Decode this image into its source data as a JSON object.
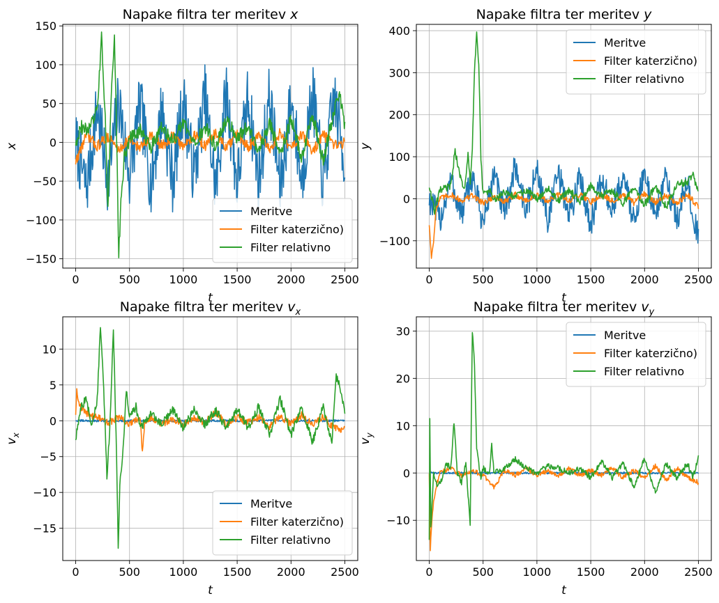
{
  "chart_data": [
    {
      "type": "line",
      "title": "Napake filtra ter meritev",
      "title_var": "x",
      "title_sub": "",
      "xlabel": "t",
      "ylabel": "x",
      "ylabel_sub": "",
      "xlim": [
        -120,
        2620
      ],
      "ylim": [
        -162,
        152
      ],
      "xticks": [
        0,
        500,
        1000,
        1500,
        2000,
        2500
      ],
      "yticks": [
        -150,
        -100,
        -50,
        0,
        50,
        100,
        150
      ],
      "ytick_labels": [
        "−150",
        "−100",
        "−50",
        "0",
        "50",
        "100",
        "150"
      ],
      "grid": true,
      "legend_position": "lower right",
      "series": [
        {
          "name": "Meritve",
          "color": "#1f77b4",
          "x": [
            0,
            100,
            200,
            300,
            400,
            500,
            600,
            700,
            800,
            900,
            1000,
            1100,
            1200,
            1300,
            1400,
            1500,
            1600,
            1700,
            1800,
            1900,
            2000,
            2100,
            2200,
            2300,
            2400,
            2500
          ],
          "y": [
            0,
            -60,
            45,
            -50,
            55,
            -45,
            50,
            -55,
            45,
            -50,
            55,
            -45,
            60,
            -60,
            65,
            -55,
            60,
            -50,
            60,
            -60,
            55,
            -50,
            65,
            -55,
            60,
            -28
          ],
          "noise": 42
        },
        {
          "name": "Filter katerzično)",
          "color": "#ff7f0e",
          "x": [
            0,
            100,
            200,
            300,
            400,
            500,
            600,
            700,
            800,
            900,
            1000,
            1100,
            1200,
            1300,
            1400,
            1500,
            1600,
            1700,
            1800,
            1900,
            2000,
            2100,
            2200,
            2300,
            2400,
            2500
          ],
          "y": [
            -25,
            10,
            -5,
            8,
            -10,
            5,
            -8,
            10,
            -5,
            8,
            -6,
            10,
            -5,
            12,
            -8,
            10,
            -6,
            8,
            -10,
            12,
            -8,
            10,
            -12,
            10,
            -5,
            0
          ],
          "noise": 7
        },
        {
          "name": "Filter relativno",
          "color": "#2ca02c",
          "x": [
            0,
            50,
            100,
            150,
            200,
            240,
            280,
            300,
            330,
            360,
            385,
            400,
            420,
            450,
            500,
            600,
            700,
            800,
            900,
            1000,
            1100,
            1200,
            1300,
            1400,
            1500,
            1600,
            1700,
            1800,
            1900,
            2000,
            2100,
            2200,
            2300,
            2400,
            2450,
            2500
          ],
          "y": [
            0,
            20,
            15,
            25,
            40,
            136,
            10,
            -88,
            60,
            136,
            -20,
            -148,
            -80,
            -20,
            5,
            15,
            -5,
            20,
            0,
            25,
            -5,
            20,
            -5,
            30,
            5,
            20,
            -10,
            25,
            -15,
            30,
            -20,
            35,
            -25,
            40,
            65,
            20
          ],
          "noise": 9
        }
      ]
    },
    {
      "type": "line",
      "title": "Napake filtra ter meritev",
      "title_var": "y",
      "title_sub": "",
      "xlabel": "t",
      "ylabel": "y",
      "ylabel_sub": "",
      "xlim": [
        -120,
        2620
      ],
      "ylim": [
        -165,
        415
      ],
      "xticks": [
        0,
        500,
        1000,
        1500,
        2000,
        2500
      ],
      "yticks": [
        -100,
        0,
        100,
        200,
        300,
        400
      ],
      "ytick_labels": [
        "−100",
        "0",
        "100",
        "200",
        "300",
        "400"
      ],
      "grid": true,
      "legend_position": "upper right",
      "series": [
        {
          "name": "Meritve",
          "color": "#1f77b4",
          "x": [
            0,
            100,
            200,
            300,
            400,
            500,
            600,
            700,
            800,
            900,
            1000,
            1100,
            1200,
            1300,
            1400,
            1500,
            1600,
            1700,
            1800,
            1900,
            2000,
            2100,
            2200,
            2300,
            2400,
            2500
          ],
          "y": [
            0,
            -50,
            45,
            -40,
            55,
            -60,
            60,
            -40,
            80,
            -30,
            70,
            -50,
            60,
            -40,
            50,
            -60,
            45,
            -30,
            55,
            -50,
            60,
            -40,
            50,
            -50,
            40,
            -100
          ],
          "noise": 35
        },
        {
          "name": "Filter katerzično)",
          "color": "#ff7f0e",
          "x": [
            0,
            20,
            40,
            60,
            100,
            200,
            300,
            400,
            500,
            600,
            700,
            800,
            900,
            1000,
            1100,
            1200,
            1300,
            1400,
            1500,
            1600,
            1700,
            1800,
            1900,
            2000,
            2100,
            2200,
            2300,
            2400,
            2500
          ],
          "y": [
            -60,
            -140,
            -100,
            -30,
            0,
            10,
            -5,
            8,
            -10,
            5,
            -8,
            10,
            -5,
            8,
            -6,
            10,
            -5,
            12,
            -8,
            10,
            -6,
            8,
            -10,
            12,
            -8,
            10,
            -12,
            10,
            -20
          ],
          "noise": 7
        },
        {
          "name": "Filter relativno",
          "color": "#2ca02c",
          "x": [
            0,
            50,
            100,
            200,
            240,
            280,
            330,
            360,
            380,
            400,
            420,
            440,
            460,
            480,
            500,
            560,
            600,
            700,
            800,
            900,
            1000,
            1100,
            1200,
            1300,
            1400,
            1500,
            1600,
            1700,
            1800,
            1900,
            2000,
            2100,
            2200,
            2300,
            2400,
            2450,
            2500
          ],
          "y": [
            30,
            -30,
            20,
            30,
            115,
            60,
            20,
            105,
            40,
            120,
            300,
            390,
            320,
            100,
            10,
            20,
            -5,
            15,
            5,
            20,
            0,
            25,
            -5,
            20,
            -5,
            30,
            5,
            20,
            -10,
            25,
            -15,
            30,
            -20,
            35,
            40,
            55,
            20
          ],
          "noise": 9
        }
      ]
    },
    {
      "type": "line",
      "title": "Napake filtra ter meritev",
      "title_var": "v",
      "title_sub": "x",
      "xlabel": "t",
      "ylabel": "v",
      "ylabel_sub": "x",
      "xlim": [
        -120,
        2620
      ],
      "ylim": [
        -19.5,
        14.5
      ],
      "xticks": [
        0,
        500,
        1000,
        1500,
        2000,
        2500
      ],
      "yticks": [
        -15,
        -10,
        -5,
        0,
        5,
        10
      ],
      "ytick_labels": [
        "−15",
        "−10",
        "−5",
        "0",
        "5",
        "10"
      ],
      "grid": true,
      "legend_position": "lower right",
      "series": [
        {
          "name": "Meritve",
          "color": "#1f77b4",
          "x": [
            0,
            500,
            1000,
            1500,
            2000,
            2500
          ],
          "y": [
            0,
            0,
            0,
            0,
            0,
            0
          ],
          "noise": 0.15
        },
        {
          "name": "Filter katerzično)",
          "color": "#ff7f0e",
          "x": [
            0,
            10,
            40,
            100,
            200,
            300,
            400,
            500,
            600,
            620,
            640,
            700,
            800,
            900,
            1000,
            1100,
            1200,
            1300,
            1400,
            1500,
            1600,
            1700,
            1800,
            1900,
            2000,
            2100,
            2200,
            2300,
            2400,
            2500
          ],
          "y": [
            1,
            4.3,
            2,
            1,
            0.5,
            -0.3,
            0.5,
            -0.5,
            0.3,
            -4.5,
            0,
            0.5,
            -0.5,
            0.3,
            -0.4,
            0.5,
            -0.3,
            1.2,
            -0.5,
            0.5,
            -0.3,
            0.5,
            -0.8,
            0.6,
            -0.5,
            0.8,
            -0.6,
            0.5,
            -1,
            -1.2
          ],
          "noise": 0.5
        },
        {
          "name": "Filter relativno",
          "color": "#2ca02c",
          "x": [
            0,
            50,
            100,
            150,
            200,
            230,
            260,
            290,
            320,
            350,
            380,
            395,
            410,
            440,
            470,
            500,
            560,
            600,
            700,
            800,
            900,
            1000,
            1100,
            1200,
            1300,
            1400,
            1500,
            1600,
            1700,
            1800,
            1900,
            2000,
            2100,
            2200,
            2300,
            2380,
            2420,
            2450,
            2500
          ],
          "y": [
            -2.5,
            2,
            3,
            -1,
            3,
            13,
            5,
            -8,
            0,
            13,
            -5,
            -18,
            -9,
            -4,
            4,
            0.5,
            2,
            -1,
            1,
            -0.5,
            1.5,
            -1,
            1.5,
            -0.5,
            1.5,
            -1,
            1.5,
            -1,
            2,
            -2,
            3,
            -2,
            2,
            -3,
            2,
            -3,
            6,
            5,
            1.5
          ],
          "noise": 0.6
        }
      ]
    },
    {
      "type": "line",
      "title": "Napake filtra ter meritev",
      "title_var": "v",
      "title_sub": "y",
      "xlabel": "t",
      "ylabel": "v",
      "ylabel_sub": "y",
      "xlim": [
        -120,
        2620
      ],
      "ylim": [
        -18.5,
        33
      ],
      "xticks": [
        0,
        500,
        1000,
        1500,
        2000,
        2500
      ],
      "yticks": [
        -10,
        0,
        10,
        20,
        30
      ],
      "ytick_labels": [
        "−10",
        "0",
        "10",
        "20",
        "30"
      ],
      "grid": true,
      "legend_position": "upper right",
      "series": [
        {
          "name": "Meritve",
          "color": "#1f77b4",
          "x": [
            0,
            500,
            1000,
            1500,
            2000,
            2500
          ],
          "y": [
            0,
            0,
            0,
            0,
            0,
            0
          ],
          "noise": 0.2
        },
        {
          "name": "Filter katerzično)",
          "color": "#ff7f0e",
          "x": [
            0,
            10,
            30,
            60,
            100,
            200,
            300,
            400,
            500,
            600,
            700,
            800,
            900,
            1000,
            1100,
            1200,
            1300,
            1400,
            1500,
            1600,
            1700,
            1800,
            1900,
            2000,
            2100,
            2200,
            2300,
            2400,
            2500
          ],
          "y": [
            0,
            -16,
            -8,
            -3,
            0,
            1,
            -0.5,
            0.5,
            -0.5,
            -3,
            0.5,
            -0.5,
            1,
            -0.5,
            0.5,
            -0.5,
            1,
            -0.5,
            0.5,
            -0.5,
            1,
            -1,
            0.5,
            -1,
            1.5,
            -1.5,
            1,
            -1,
            -2
          ],
          "noise": 0.5
        },
        {
          "name": "Filter relativno",
          "color": "#2ca02c",
          "x": [
            0,
            5,
            15,
            40,
            80,
            120,
            160,
            200,
            230,
            260,
            300,
            340,
            380,
            400,
            420,
            440,
            460,
            480,
            500,
            560,
            580,
            600,
            700,
            800,
            900,
            1000,
            1100,
            1200,
            1300,
            1400,
            1500,
            1600,
            1700,
            1800,
            1900,
            2000,
            2100,
            2200,
            2300,
            2400,
            2450,
            2500
          ],
          "y": [
            -14,
            11,
            -12,
            0,
            -3,
            -1,
            2,
            1,
            11,
            0,
            -2,
            2,
            -11,
            30,
            23,
            5,
            2,
            -1,
            1,
            0,
            6.5,
            0,
            1,
            3,
            1,
            0,
            1.5,
            1,
            0,
            1,
            -1,
            2.5,
            -1,
            2,
            -3,
            3,
            -4,
            2,
            -1,
            2,
            -1,
            3.5
          ],
          "noise": 0.6
        }
      ]
    }
  ]
}
